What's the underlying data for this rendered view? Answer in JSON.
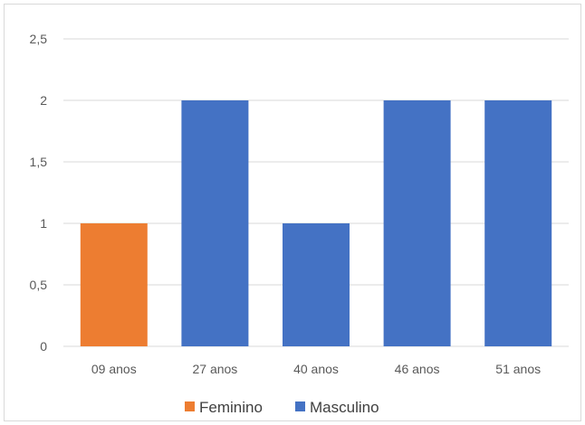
{
  "chart_data": {
    "type": "bar",
    "categories": [
      "09 anos",
      "27 anos",
      "40 anos",
      "46 anos",
      "51 anos"
    ],
    "series": [
      {
        "name": "Feminino",
        "color": "#ed7d31",
        "values": [
          1,
          null,
          null,
          null,
          null
        ]
      },
      {
        "name": "Masculino",
        "color": "#4472c4",
        "values": [
          null,
          2,
          1,
          2,
          2
        ]
      }
    ],
    "y_ticks": [
      "0",
      "0,5",
      "1",
      "1,5",
      "2",
      "2,5"
    ],
    "y_tick_values": [
      0,
      0.5,
      1,
      1.5,
      2,
      2.5
    ],
    "ylim": [
      0,
      2.5
    ],
    "grid": true,
    "legend": "bottom",
    "gridline_color": "#d9d9d9"
  }
}
